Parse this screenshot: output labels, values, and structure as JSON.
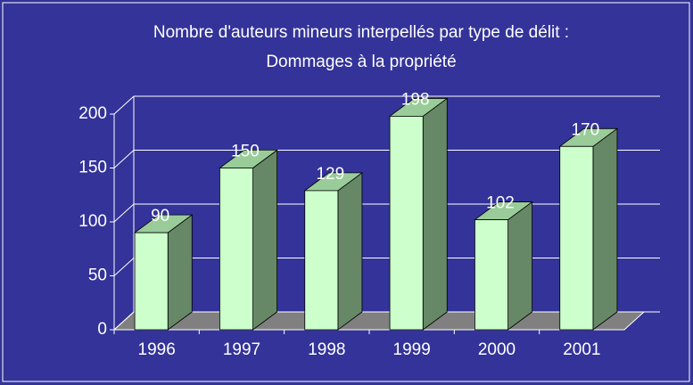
{
  "chart_data": {
    "type": "bar3d",
    "title": [
      "Nombre d'auteurs mineurs interpellés par type de délit :",
      "Dommages à la propriété"
    ],
    "categories": [
      "1996",
      "1997",
      "1998",
      "1999",
      "2000",
      "2001"
    ],
    "values": [
      90,
      150,
      129,
      198,
      102,
      170
    ],
    "color": "#ccffcc",
    "ylim": [
      0,
      200
    ],
    "yticks": [
      0,
      50,
      100,
      150,
      200
    ],
    "grid": true
  }
}
